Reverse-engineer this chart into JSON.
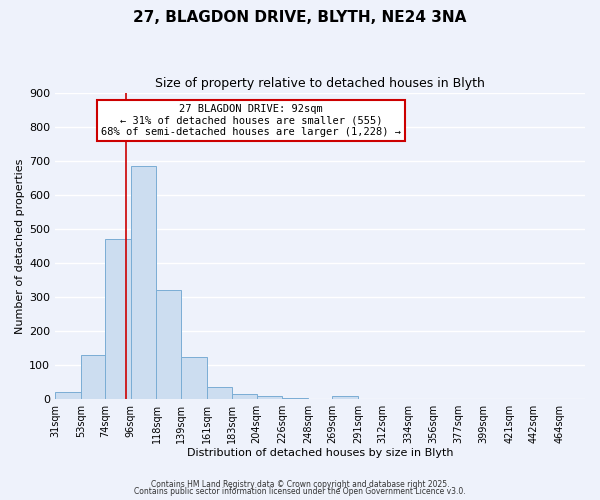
{
  "title": "27, BLAGDON DRIVE, BLYTH, NE24 3NA",
  "subtitle": "Size of property relative to detached houses in Blyth",
  "xlabel": "Distribution of detached houses by size in Blyth",
  "ylabel": "Number of detached properties",
  "bin_labels": [
    "31sqm",
    "53sqm",
    "74sqm",
    "96sqm",
    "118sqm",
    "139sqm",
    "161sqm",
    "183sqm",
    "204sqm",
    "226sqm",
    "248sqm",
    "269sqm",
    "291sqm",
    "312sqm",
    "334sqm",
    "356sqm",
    "377sqm",
    "399sqm",
    "421sqm",
    "442sqm",
    "464sqm"
  ],
  "bin_edges": [
    31,
    53,
    74,
    96,
    118,
    139,
    161,
    183,
    204,
    226,
    248,
    269,
    291,
    312,
    334,
    356,
    377,
    399,
    421,
    442,
    464
  ],
  "bar_heights": [
    20,
    130,
    470,
    685,
    320,
    125,
    35,
    15,
    8,
    2,
    0,
    8,
    0,
    0,
    0,
    0,
    0,
    0,
    0,
    0
  ],
  "bar_color": "#ccddf0",
  "bar_edge_color": "#7aadd4",
  "vline_x": 92,
  "vline_color": "#cc0000",
  "ylim": [
    0,
    900
  ],
  "yticks": [
    0,
    100,
    200,
    300,
    400,
    500,
    600,
    700,
    800,
    900
  ],
  "annotation_line1": "27 BLAGDON DRIVE: 92sqm",
  "annotation_line2": "← 31% of detached houses are smaller (555)",
  "annotation_line3": "68% of semi-detached houses are larger (1,228) →",
  "annotation_box_color": "#ffffff",
  "annotation_box_edge": "#cc0000",
  "footer1": "Contains HM Land Registry data © Crown copyright and database right 2025.",
  "footer2": "Contains public sector information licensed under the Open Government Licence v3.0.",
  "background_color": "#eef2fb",
  "grid_color": "#ffffff"
}
